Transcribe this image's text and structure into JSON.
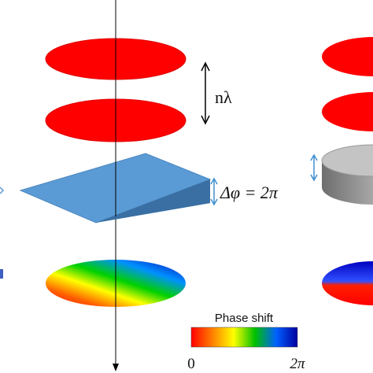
{
  "labels": {
    "wavelength_label": "nλ",
    "phase_step_label": "Δφ = 2π",
    "phase_shift_title": "Phase shift",
    "scale_min": "0",
    "scale_max": "2π"
  },
  "colors": {
    "wavefront": "#ff0000",
    "wavefront_edge": "#d40000",
    "wedge_top": "#5b9bd5",
    "wedge_side": "#3f78b0",
    "arrow": "#3f8fd0",
    "left_tick": "#3f5fc0",
    "cylinder_top": "#c0c0c0",
    "cylinder_side": "#7f7f7f",
    "axis": "#000000"
  },
  "colorbar": {
    "stops": [
      "#ff0000",
      "#ff8000",
      "#ffff00",
      "#00c000",
      "#0060ff",
      "#0000a0"
    ]
  }
}
